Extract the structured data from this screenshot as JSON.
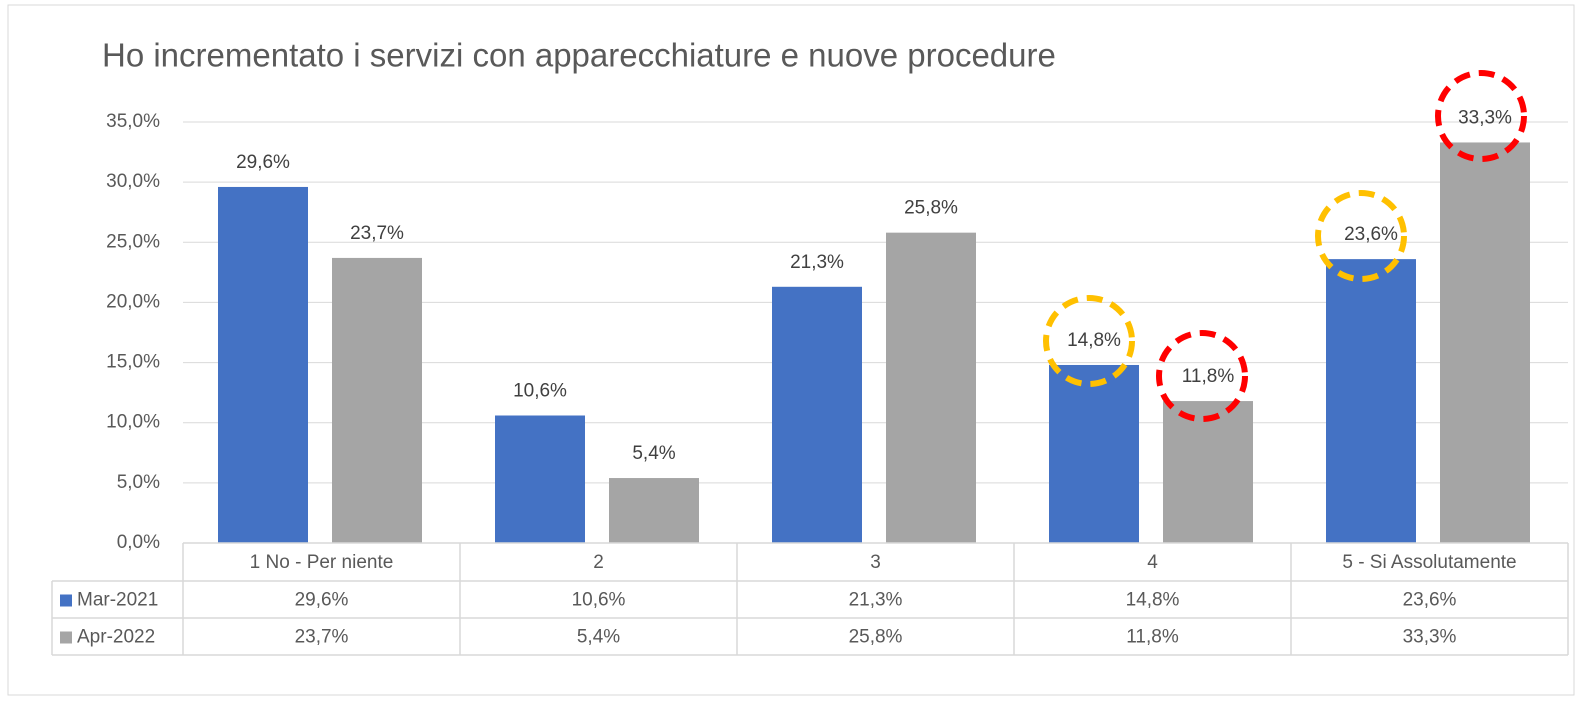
{
  "chart_data": {
    "type": "bar",
    "title": "Ho incrementato i servizi con apparecchiature e nuove procedure",
    "categories": [
      "1 No - Per niente",
      "2",
      "3",
      "4",
      "5 - Si Assolutamente"
    ],
    "series": [
      {
        "name": "Mar-2021",
        "color": "#4472c4",
        "values": [
          29.6,
          10.6,
          21.3,
          14.8,
          23.6
        ],
        "value_labels": [
          "29,6%",
          "10,6%",
          "21,3%",
          "14,8%",
          "23,6%"
        ]
      },
      {
        "name": "Apr-2022",
        "color": "#a5a5a5",
        "values": [
          23.7,
          5.4,
          25.8,
          11.8,
          33.3
        ],
        "value_labels": [
          "23,7%",
          "5,4%",
          "25,8%",
          "11,8%",
          "33,3%"
        ]
      }
    ],
    "ylim": [
      0,
      35
    ],
    "yticks": [
      {
        "value": 0,
        "label": "0,0%"
      },
      {
        "value": 5,
        "label": "5,0%"
      },
      {
        "value": 10,
        "label": "10,0%"
      },
      {
        "value": 15,
        "label": "15,0%"
      },
      {
        "value": 20,
        "label": "20,0%"
      },
      {
        "value": 25,
        "label": "25,0%"
      },
      {
        "value": 30,
        "label": "30,0%"
      },
      {
        "value": 35,
        "label": "35,0%"
      }
    ],
    "grid": true
  }
}
